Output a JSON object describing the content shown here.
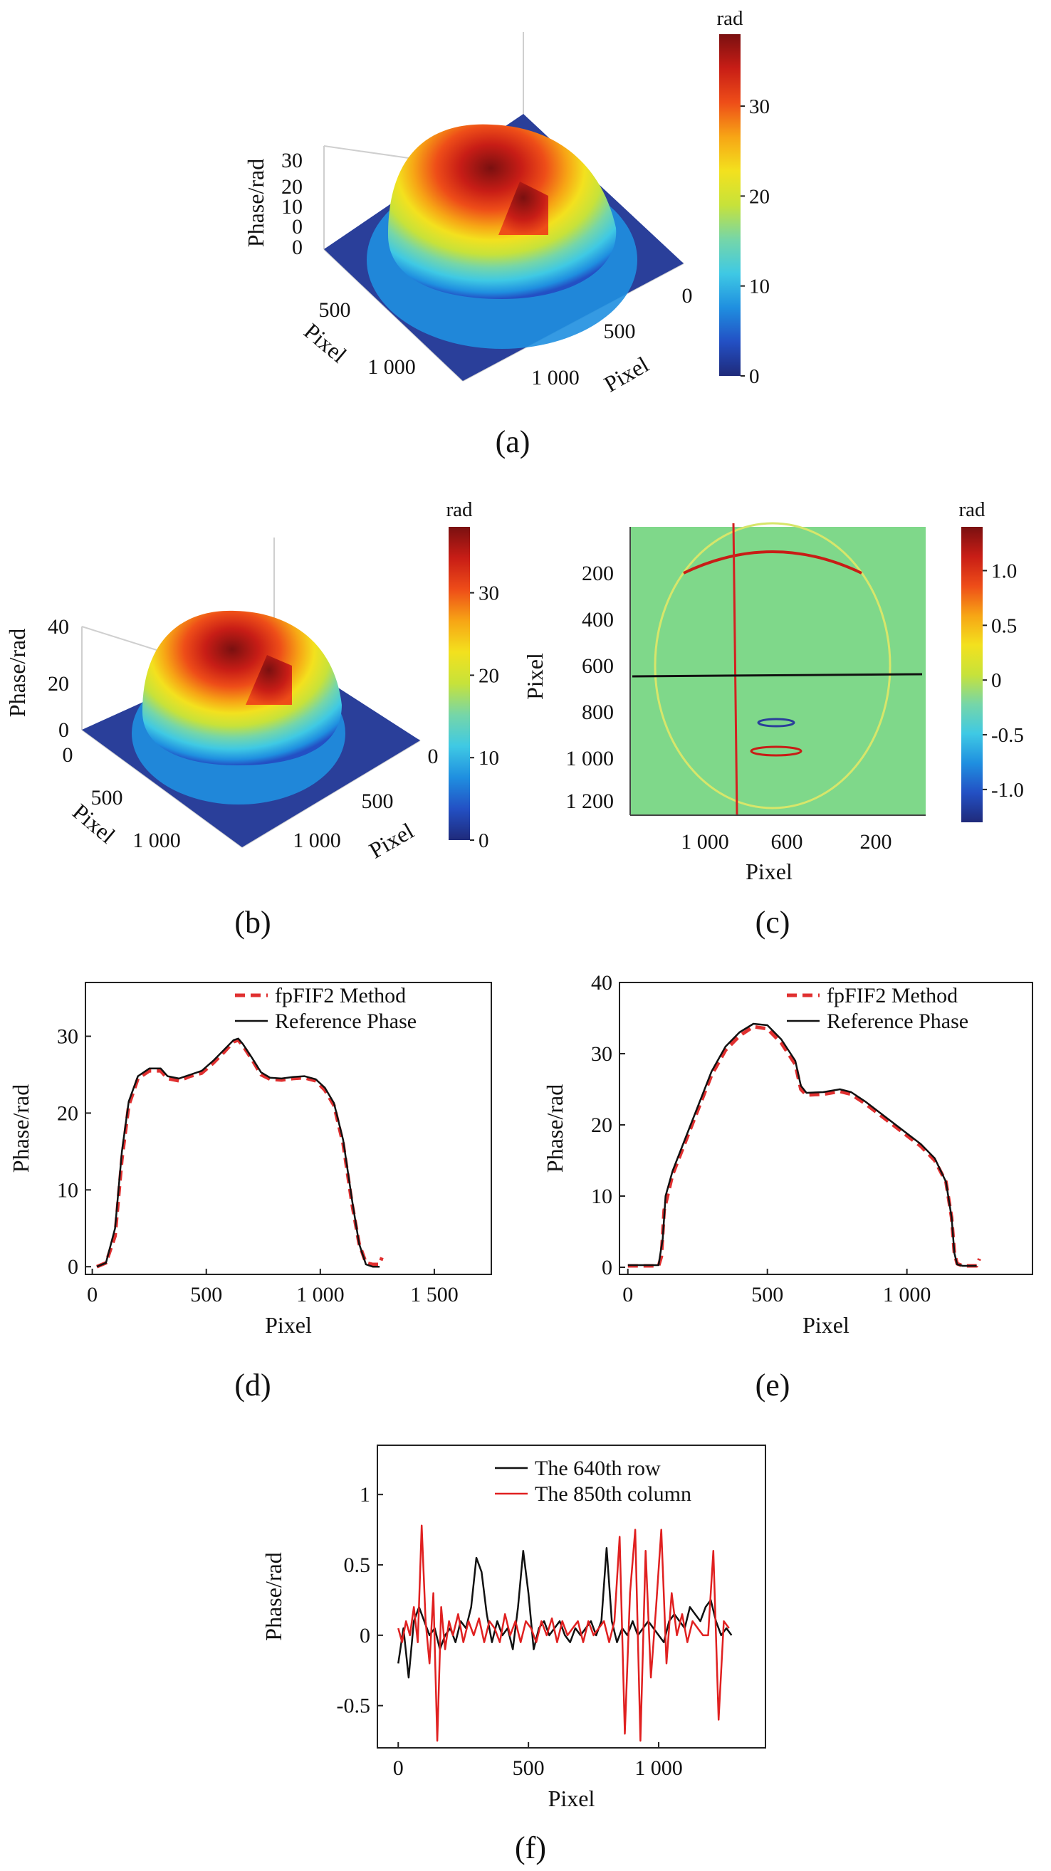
{
  "figure": {
    "captions": [
      "(a)",
      "(b)",
      "(c)",
      "(d)",
      "(e)",
      "(f)"
    ],
    "colormap": [
      "#1f2a7a",
      "#2350c4",
      "#1f8fe0",
      "#3fc9e4",
      "#76d6a8",
      "#c7e23a",
      "#f3e11e",
      "#f7a515",
      "#ee4d18",
      "#c81d16",
      "#7a1010"
    ]
  },
  "chart_data": [
    {
      "id": "a",
      "type": "surface3d",
      "zlabel": "Phase/rad",
      "xlabel": "Pixel",
      "ylabel": "Pixel",
      "zticks": [
        "0",
        "10",
        "20",
        "30"
      ],
      "xticks": [
        "500",
        "1 000"
      ],
      "yticks": [
        "0",
        "500",
        "1 000"
      ],
      "colorbar": {
        "label": "rad",
        "ticks": [
          "0",
          "10",
          "20",
          "30"
        ],
        "range": [
          0,
          38
        ]
      }
    },
    {
      "id": "b",
      "type": "surface3d",
      "zlabel": "Phase/rad",
      "xlabel": "Pixel",
      "ylabel": "Pixel",
      "zticks": [
        "0",
        "20",
        "40"
      ],
      "xticks": [
        "0",
        "500",
        "1 000"
      ],
      "yticks": [
        "0",
        "500",
        "1 000"
      ],
      "colorbar": {
        "label": "rad",
        "ticks": [
          "0",
          "10",
          "20",
          "30"
        ],
        "range": [
          0,
          38
        ]
      }
    },
    {
      "id": "c",
      "type": "heatmap",
      "xlabel": "Pixel",
      "ylabel": "Pixel",
      "xticks": [
        "1 000",
        "600",
        "200"
      ],
      "yticks": [
        "200",
        "400",
        "600",
        "800",
        "1 000",
        "1 200"
      ],
      "colorbar": {
        "label": "rad",
        "ticks": [
          "-1.0",
          "-0.5",
          "0",
          "0.5",
          "1.0"
        ],
        "range": [
          -1.3,
          1.4
        ]
      },
      "lines": [
        {
          "orientation": "vertical",
          "color": "#d42020"
        },
        {
          "orientation": "horizontal",
          "color": "#111111"
        }
      ]
    },
    {
      "id": "d",
      "type": "line",
      "xlabel": "Pixel",
      "ylabel": "Phase/rad",
      "xlim": [
        -30,
        1750
      ],
      "ylim": [
        -1,
        37
      ],
      "xticks": [
        0,
        500,
        1000,
        1500
      ],
      "xtick_labels": [
        "0",
        "500",
        "1 000",
        "1 500"
      ],
      "yticks": [
        0,
        10,
        20,
        30
      ],
      "yticks_labels": [
        "0",
        "10",
        "20",
        "30"
      ],
      "series": [
        {
          "name": "fpFIF2 Method",
          "color": "#e03030",
          "dash": true,
          "x": [
            20,
            60,
            100,
            130,
            160,
            200,
            250,
            300,
            330,
            380,
            430,
            480,
            530,
            580,
            620,
            640,
            660,
            700,
            740,
            780,
            830,
            880,
            930,
            980,
            1020,
            1060,
            1100,
            1140,
            1170,
            1200,
            1230,
            1260,
            1270
          ],
          "y": [
            0,
            0.5,
            4,
            14,
            21,
            24.5,
            25.5,
            25.5,
            24.5,
            24.2,
            24.8,
            25.2,
            26.5,
            28,
            29.3,
            29.5,
            28.8,
            27,
            25,
            24.4,
            24.3,
            24.5,
            24.6,
            24.2,
            23,
            21,
            16,
            8,
            3,
            0.5,
            0.3,
            0.3,
            1.2
          ]
        },
        {
          "name": "Reference Phase",
          "color": "#111111",
          "dash": false,
          "x": [
            20,
            60,
            100,
            130,
            160,
            200,
            250,
            300,
            330,
            380,
            430,
            480,
            530,
            580,
            620,
            640,
            660,
            700,
            740,
            780,
            830,
            880,
            930,
            980,
            1020,
            1060,
            1100,
            1140,
            1170,
            1200,
            1230,
            1260
          ],
          "y": [
            0,
            0.5,
            5,
            15,
            21.5,
            24.8,
            25.8,
            25.8,
            24.8,
            24.5,
            25,
            25.5,
            26.8,
            28.3,
            29.5,
            29.7,
            29,
            27.2,
            25.3,
            24.6,
            24.5,
            24.7,
            24.8,
            24.4,
            23.3,
            21.3,
            16.5,
            8.5,
            3,
            0.3,
            0,
            0
          ]
        }
      ],
      "legend": "top-right"
    },
    {
      "id": "e",
      "type": "line",
      "xlabel": "Pixel",
      "ylabel": "Phase/rad",
      "xlim": [
        -30,
        1450
      ],
      "ylim": [
        -1,
        40
      ],
      "xticks": [
        0,
        500,
        1000
      ],
      "xtick_labels": [
        "0",
        "500",
        "1 000"
      ],
      "yticks": [
        0,
        10,
        20,
        30,
        40
      ],
      "yticks_labels": [
        "0",
        "10",
        "20",
        "30",
        "40"
      ],
      "series": [
        {
          "name": "fpFIF2 Method",
          "color": "#e03030",
          "dash": true,
          "x": [
            0,
            80,
            110,
            120,
            130,
            160,
            200,
            250,
            300,
            350,
            400,
            450,
            500,
            550,
            600,
            620,
            640,
            700,
            760,
            800,
            850,
            900,
            950,
            1000,
            1050,
            1100,
            1140,
            1160,
            1170,
            1180,
            1200,
            1250,
            1260
          ],
          "y": [
            0.2,
            0.2,
            0.2,
            1.5,
            8,
            13,
            17,
            22,
            27,
            30.5,
            32.5,
            33.8,
            33.5,
            31.5,
            28.5,
            25,
            24.2,
            24.3,
            24.7,
            24.3,
            23,
            21.5,
            20,
            18.5,
            17,
            15,
            12,
            7,
            2,
            0.5,
            0.2,
            0.2,
            1.2
          ]
        },
        {
          "name": "Reference Phase",
          "color": "#111111",
          "dash": false,
          "x": [
            0,
            80,
            110,
            125,
            135,
            160,
            200,
            250,
            300,
            350,
            400,
            450,
            500,
            550,
            600,
            620,
            640,
            700,
            760,
            800,
            850,
            900,
            950,
            1000,
            1050,
            1100,
            1140,
            1160,
            1170,
            1180,
            1200,
            1250
          ],
          "y": [
            0.3,
            0.3,
            0.3,
            4,
            10,
            13.5,
            17.5,
            22.5,
            27.5,
            31,
            33,
            34.2,
            34,
            32,
            29,
            25.5,
            24.5,
            24.6,
            25,
            24.6,
            23.3,
            21.8,
            20.3,
            18.8,
            17.3,
            15.3,
            12,
            7,
            2,
            0.4,
            0.2,
            0.2
          ]
        }
      ],
      "legend": "top-right"
    },
    {
      "id": "f",
      "type": "line",
      "xlabel": "Pixel",
      "ylabel": "Phase/rad",
      "xlim": [
        -80,
        1410
      ],
      "ylim": [
        -0.8,
        1.35
      ],
      "xticks": [
        0,
        500,
        1000
      ],
      "xtick_labels": [
        "0",
        "500",
        "1 000"
      ],
      "yticks": [
        -0.5,
        0,
        0.5,
        1
      ],
      "yticks_labels": [
        "-0.5",
        "0",
        "0.5",
        "1"
      ],
      "series": [
        {
          "name": "The 640th row",
          "color": "#111111",
          "x": [
            0,
            20,
            40,
            60,
            80,
            100,
            120,
            140,
            160,
            180,
            200,
            220,
            240,
            260,
            280,
            300,
            320,
            340,
            360,
            380,
            400,
            420,
            440,
            460,
            480,
            500,
            520,
            540,
            560,
            580,
            600,
            620,
            640,
            660,
            680,
            700,
            720,
            740,
            760,
            780,
            800,
            820,
            840,
            860,
            880,
            900,
            920,
            940,
            960,
            980,
            1000,
            1020,
            1040,
            1060,
            1080,
            1100,
            1120,
            1140,
            1160,
            1180,
            1200,
            1220,
            1240,
            1260,
            1280
          ],
          "y": [
            -0.2,
            0.05,
            -0.3,
            0.1,
            0.2,
            0.1,
            0,
            0.05,
            -0.1,
            0,
            0.05,
            -0.05,
            0.1,
            0.05,
            0.2,
            0.55,
            0.45,
            0.15,
            -0.05,
            0.1,
            0,
            0.05,
            -0.1,
            0.2,
            0.6,
            0.3,
            -0.1,
            0.05,
            0.1,
            0,
            0.05,
            0.1,
            0,
            -0.05,
            0.05,
            0,
            0.05,
            0.1,
            0,
            0.1,
            0.62,
            0.1,
            -0.05,
            0.05,
            0,
            0.1,
            0,
            0.05,
            0.1,
            0.05,
            0,
            -0.05,
            0.1,
            0.15,
            0.1,
            0.05,
            0.2,
            0.15,
            0.1,
            0.2,
            0.25,
            0.1,
            0,
            0.05,
            0
          ]
        },
        {
          "name": "The 850th column",
          "color": "#e02020",
          "x": [
            0,
            15,
            30,
            45,
            60,
            75,
            90,
            105,
            120,
            135,
            150,
            165,
            180,
            195,
            210,
            230,
            250,
            270,
            290,
            310,
            330,
            350,
            370,
            390,
            410,
            430,
            450,
            470,
            490,
            510,
            530,
            550,
            570,
            590,
            610,
            630,
            650,
            670,
            690,
            710,
            730,
            750,
            770,
            790,
            810,
            830,
            850,
            870,
            890,
            910,
            930,
            950,
            970,
            990,
            1010,
            1030,
            1050,
            1070,
            1090,
            1110,
            1130,
            1150,
            1170,
            1190,
            1210,
            1230,
            1250,
            1270
          ],
          "y": [
            0.05,
            -0.05,
            0.1,
            0,
            0.2,
            -0.05,
            0.78,
            0.1,
            -0.2,
            0.3,
            -0.75,
            0.2,
            -0.1,
            0.1,
            0,
            0.15,
            -0.05,
            0.1,
            0,
            0.12,
            -0.05,
            0.1,
            0.05,
            -0.05,
            0.15,
            0,
            0.1,
            -0.05,
            0.1,
            0.05,
            -0.05,
            0.1,
            0,
            0.12,
            -0.05,
            0.1,
            0,
            0.05,
            0.1,
            -0.05,
            0.1,
            0,
            0.05,
            0.1,
            -0.05,
            0.1,
            0.7,
            -0.7,
            0.3,
            0.75,
            -0.75,
            0.6,
            -0.3,
            0.2,
            0.75,
            -0.2,
            0.3,
            0,
            0.15,
            -0.05,
            0.1,
            0.05,
            0,
            0,
            0.6,
            -0.6,
            0.1,
            0.05
          ]
        }
      ],
      "legend": "top-right"
    }
  ]
}
